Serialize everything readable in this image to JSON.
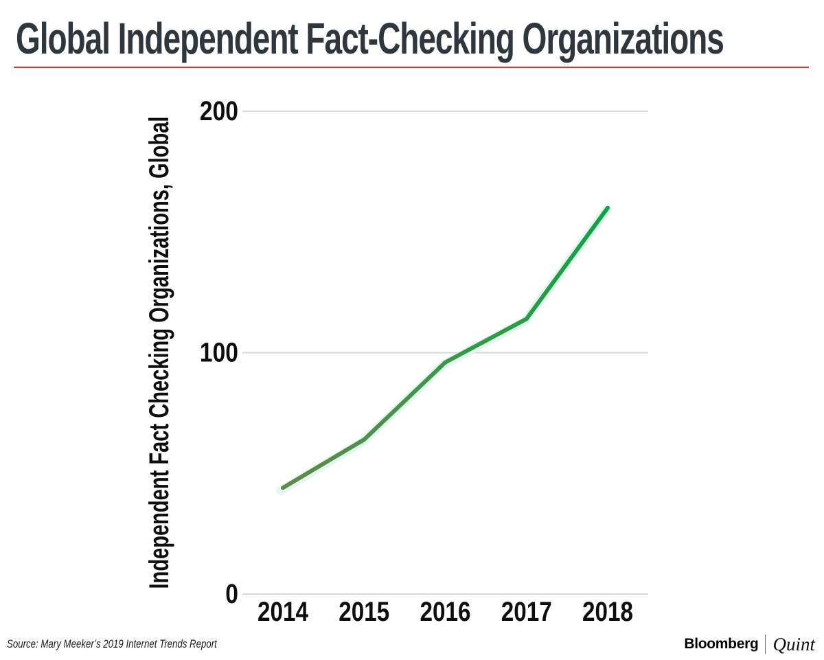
{
  "page": {
    "title": "Global Independent Fact-Checking Organizations",
    "title_color": "#2f373e",
    "accent_color": "#ee3226"
  },
  "chart_data": {
    "type": "line",
    "title": "Global Independent Fact-Checking Organizations",
    "x": [
      "2014",
      "2015",
      "2016",
      "2017",
      "2018"
    ],
    "values": [
      44,
      64,
      96,
      114,
      160
    ],
    "series": [
      {
        "name": "Independent fact-checking organizations",
        "values": [
          44,
          64,
          96,
          114,
          160
        ]
      }
    ],
    "xlabel": "",
    "ylabel": "Independent Fact Checking Organizations, Global",
    "yticks": [
      "0",
      "100",
      "200"
    ],
    "ytick_values": [
      0,
      100,
      200
    ],
    "ylim": [
      0,
      200
    ],
    "grid": "horizontal-only",
    "legend": "none",
    "line_color_start": "#618a49",
    "line_color_mid": "#3b9847",
    "line_color_end": "#07a73f",
    "line_shadow_color": "#dff6ef",
    "gridline_color": "#d6d8db",
    "label_color": "#0e0e0e"
  },
  "footer": {
    "source": "Source: Mary Meeker’s 2019 Internet Trends Report",
    "logo_bloomberg": "Bloomberg",
    "logo_divider": "|",
    "logo_quint": "Quint"
  }
}
